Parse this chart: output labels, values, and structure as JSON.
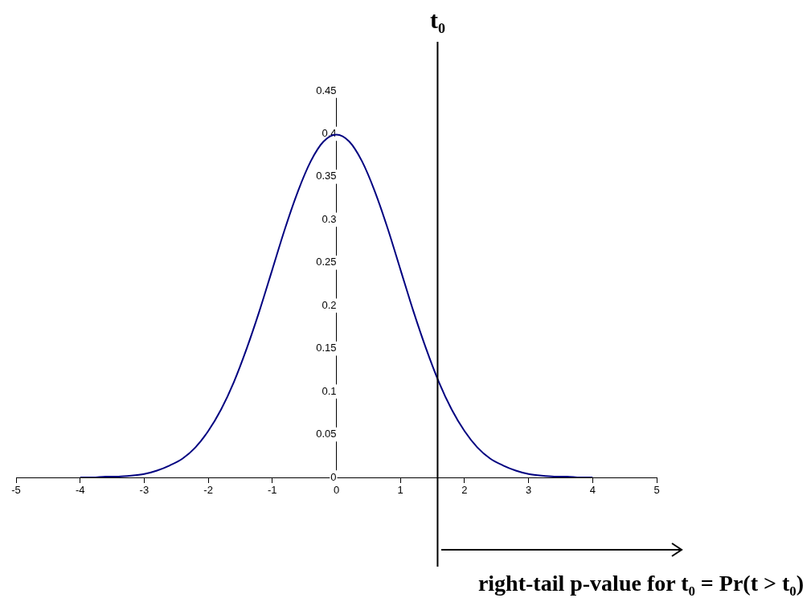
{
  "chart_data": {
    "type": "line",
    "x": [
      -4,
      -3.8,
      -3.6,
      -3.4,
      -3.2,
      -3,
      -2.8,
      -2.6,
      -2.4,
      -2.2,
      -2,
      -1.8,
      -1.6,
      -1.4,
      -1.2,
      -1,
      -0.8,
      -0.6,
      -0.4,
      -0.2,
      0,
      0.2,
      0.4,
      0.6,
      0.8,
      1,
      1.2,
      1.4,
      1.6,
      1.8,
      2,
      2.2,
      2.4,
      2.6,
      2.8,
      3,
      3.2,
      3.4,
      3.6,
      3.8,
      4
    ],
    "series": [
      {
        "color": "#000080",
        "values": [
          0,
          0,
          0.001,
          0.001,
          0.002,
          0.004,
          0.008,
          0.014,
          0.022,
          0.035,
          0.054,
          0.079,
          0.111,
          0.15,
          0.194,
          0.242,
          0.29,
          0.333,
          0.368,
          0.391,
          0.399,
          0.391,
          0.368,
          0.333,
          0.29,
          0.242,
          0.194,
          0.15,
          0.111,
          0.079,
          0.054,
          0.035,
          0.022,
          0.014,
          0.008,
          0.004,
          0.002,
          0.001,
          0.001,
          0,
          0
        ]
      }
    ],
    "xlim": [
      -5,
      5
    ],
    "xticks": [
      -5,
      -4,
      -3,
      -2,
      -1,
      0,
      1,
      2,
      3,
      4,
      5
    ],
    "ylim": [
      0,
      0.45
    ],
    "yticks": [
      0,
      0.05,
      0.1,
      0.15,
      0.2,
      0.25,
      0.3,
      0.35,
      0.4,
      0.45
    ],
    "ref_lines": [
      {
        "axis": "x",
        "value": 1.58,
        "label": "t₀",
        "color": "#000000"
      }
    ],
    "annotations": [
      "right-tail p-value for t₀ = Pr(t > t₀)"
    ],
    "grid": false,
    "legend": false,
    "marker": "none",
    "line_style": "solid"
  }
}
